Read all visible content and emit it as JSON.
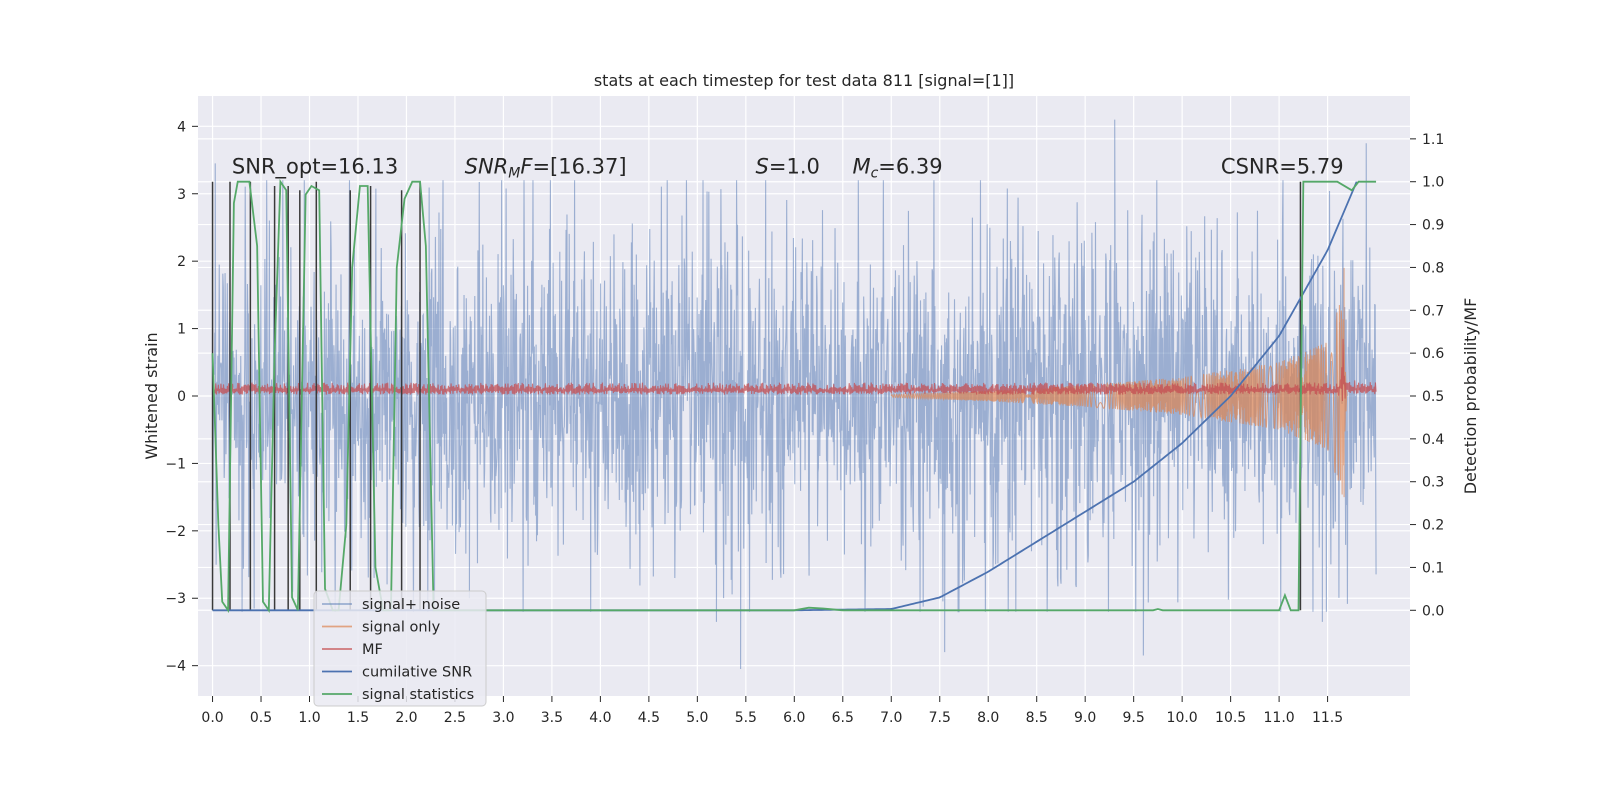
{
  "chart_data": {
    "type": "line",
    "title": "stats at each timestep for test data 811 [signal=[1]]",
    "ylabel": "Whitened strain",
    "ylabel_right": "Detection probability/MF",
    "xlim": [
      -0.15,
      12.35
    ],
    "ylim": [
      -4.45,
      4.45
    ],
    "ylim_right": [
      -0.2,
      1.2
    ],
    "x_ticks": [
      0.0,
      0.5,
      1.0,
      1.5,
      2.0,
      2.5,
      3.0,
      3.5,
      4.0,
      4.5,
      5.0,
      5.5,
      6.0,
      6.5,
      7.0,
      7.5,
      8.0,
      8.5,
      9.0,
      9.5,
      10.0,
      10.5,
      11.0,
      11.5
    ],
    "x_tick_labels": [
      "0.0",
      "0.5",
      "1.0",
      "1.5",
      "2.0",
      "2.5",
      "3.0",
      "3.5",
      "4.0",
      "4.5",
      "5.0",
      "5.5",
      "6.0",
      "6.5",
      "7.0",
      "7.5",
      "8.0",
      "8.5",
      "9.0",
      "9.5",
      "10.0",
      "10.5",
      "11.0",
      "11.5"
    ],
    "y_ticks": [
      -4,
      -3,
      -2,
      -1,
      0,
      1,
      2,
      3,
      4
    ],
    "y_tick_labels": [
      "−4",
      "−3",
      "−2",
      "−1",
      "0",
      "1",
      "2",
      "3",
      "4"
    ],
    "y_right_ticks": [
      0.0,
      0.1,
      0.2,
      0.3,
      0.4,
      0.5,
      0.6,
      0.7,
      0.8,
      0.9,
      1.0,
      1.1
    ],
    "y_right_tick_labels": [
      "0.0",
      "0.1",
      "0.2",
      "0.3",
      "0.4",
      "0.5",
      "0.6",
      "0.7",
      "0.8",
      "0.9",
      "1.0",
      "1.1"
    ],
    "grid": true,
    "legend_placement": "lower-left",
    "annotations": [
      {
        "x": 0.2,
        "y": 3.3,
        "parts": [
          {
            "t": "SNR_opt=16.13"
          }
        ]
      },
      {
        "x": 2.6,
        "y": 3.3,
        "parts": [
          {
            "t": "SNR",
            "i": true
          },
          {
            "t": "M",
            "i": true,
            "sub": true
          },
          {
            "t": "F",
            "i": true
          },
          {
            "t": "=[16.37]"
          }
        ]
      },
      {
        "x": 5.6,
        "y": 3.3,
        "parts": [
          {
            "t": "S",
            "i": true
          },
          {
            "t": "=1.0"
          }
        ]
      },
      {
        "x": 6.6,
        "y": 3.3,
        "parts": [
          {
            "t": "M",
            "i": true
          },
          {
            "t": "c",
            "i": true,
            "sub": true
          },
          {
            "t": "=6.39"
          }
        ]
      },
      {
        "x": 10.4,
        "y": 3.3,
        "parts": [
          {
            "t": "CSNR=5.79"
          }
        ]
      }
    ],
    "series": [
      {
        "name": "signal+ noise",
        "axis": "left",
        "color": "#4c72b0",
        "kind": "noise",
        "x_range": [
          0.0,
          12.0
        ],
        "amplitude_typical": 1.5,
        "peaks": [
          [
            0.03,
            3.45
          ],
          [
            9.3,
            4.1
          ],
          [
            11.9,
            3.75
          ],
          [
            5.45,
            -4.05
          ],
          [
            9.6,
            -3.85
          ],
          [
            7.55,
            -3.8
          ],
          [
            11.45,
            -3.35
          ],
          [
            2.65,
            -3.0
          ],
          [
            5.2,
            -3.35
          ]
        ]
      },
      {
        "name": "signal only",
        "axis": "left",
        "color": "#dd8452",
        "kind": "chirp",
        "x_range": [
          7.0,
          11.7
        ],
        "envelope": [
          [
            7.0,
            0.02
          ],
          [
            8.0,
            0.08
          ],
          [
            9.0,
            0.16
          ],
          [
            10.0,
            0.28
          ],
          [
            11.0,
            0.5
          ],
          [
            11.5,
            0.8
          ],
          [
            11.65,
            1.5
          ],
          [
            11.7,
            0.0
          ]
        ],
        "peak": [
          11.67,
          1.9,
          -1.5
        ]
      },
      {
        "name": "MF",
        "axis": "left",
        "color": "#c44e52",
        "kind": "band",
        "x_range": [
          0.0,
          12.0
        ],
        "values": [
          [
            0.0,
            0.02,
            0.2
          ],
          [
            11.6,
            0.02,
            0.2
          ],
          [
            11.64,
            -0.1,
            0.6
          ],
          [
            11.66,
            -0.25,
            1.0
          ],
          [
            11.7,
            0.02,
            0.25
          ],
          [
            12.0,
            0.02,
            0.2
          ]
        ]
      },
      {
        "name": "cumilative SNR",
        "axis": "right",
        "color": "#4c72b0",
        "kind": "line",
        "points": [
          [
            0.0,
            0.0
          ],
          [
            6.0,
            0.0
          ],
          [
            7.0,
            0.003
          ],
          [
            7.5,
            0.03
          ],
          [
            8.0,
            0.09
          ],
          [
            8.5,
            0.16
          ],
          [
            9.0,
            0.23
          ],
          [
            9.5,
            0.3
          ],
          [
            10.0,
            0.39
          ],
          [
            10.5,
            0.5
          ],
          [
            11.0,
            0.64
          ],
          [
            11.5,
            0.84
          ],
          [
            11.8,
            1.0
          ]
        ]
      },
      {
        "name": "signal statistics",
        "axis": "right",
        "color": "#55a868",
        "kind": "line",
        "points": [
          [
            0.0,
            0.6
          ],
          [
            0.06,
            0.2
          ],
          [
            0.1,
            0.02
          ],
          [
            0.16,
            0.0
          ],
          [
            0.22,
            0.95
          ],
          [
            0.26,
            1.0
          ],
          [
            0.38,
            1.0
          ],
          [
            0.46,
            0.85
          ],
          [
            0.52,
            0.02
          ],
          [
            0.58,
            0.0
          ],
          [
            0.64,
            0.6
          ],
          [
            0.7,
            1.0
          ],
          [
            0.76,
            0.98
          ],
          [
            0.82,
            0.03
          ],
          [
            0.88,
            0.0
          ],
          [
            0.96,
            0.97
          ],
          [
            1.02,
            0.99
          ],
          [
            1.1,
            0.98
          ],
          [
            1.16,
            0.05
          ],
          [
            1.24,
            0.0
          ],
          [
            1.3,
            0.0
          ],
          [
            1.38,
            0.2
          ],
          [
            1.44,
            0.8
          ],
          [
            1.52,
            0.99
          ],
          [
            1.6,
            0.99
          ],
          [
            1.68,
            0.1
          ],
          [
            1.76,
            0.0
          ],
          [
            1.84,
            0.0
          ],
          [
            1.9,
            0.8
          ],
          [
            1.98,
            0.96
          ],
          [
            2.06,
            1.0
          ],
          [
            2.14,
            1.0
          ],
          [
            2.2,
            0.85
          ],
          [
            2.28,
            0.0
          ],
          [
            2.34,
            0.0
          ],
          [
            6.0,
            0.0
          ],
          [
            6.15,
            0.006
          ],
          [
            6.3,
            0.004
          ],
          [
            6.5,
            0.0
          ],
          [
            9.7,
            0.0
          ],
          [
            9.75,
            0.003
          ],
          [
            9.8,
            0.0
          ],
          [
            11.0,
            0.0
          ],
          [
            11.06,
            0.035
          ],
          [
            11.12,
            0.0
          ],
          [
            11.2,
            0.0
          ],
          [
            11.25,
            1.0
          ],
          [
            11.6,
            1.0
          ],
          [
            11.75,
            0.98
          ],
          [
            11.82,
            1.0
          ],
          [
            12.0,
            1.0
          ]
        ]
      }
    ],
    "vlines_right": {
      "color": "#3a3a3a",
      "segments": [
        [
          0.0,
          0.0,
          1.0
        ],
        [
          0.18,
          0.0,
          1.0
        ],
        [
          0.39,
          0.0,
          1.0
        ],
        [
          0.64,
          0.0,
          0.99
        ],
        [
          0.78,
          0.0,
          0.99
        ],
        [
          0.9,
          0.0,
          0.98
        ],
        [
          1.07,
          0.0,
          1.0
        ],
        [
          1.42,
          0.0,
          0.98
        ],
        [
          1.63,
          0.0,
          0.99
        ],
        [
          1.95,
          0.0,
          0.98
        ],
        [
          2.14,
          0.0,
          1.0
        ],
        [
          11.22,
          0.0,
          1.0
        ]
      ]
    }
  }
}
